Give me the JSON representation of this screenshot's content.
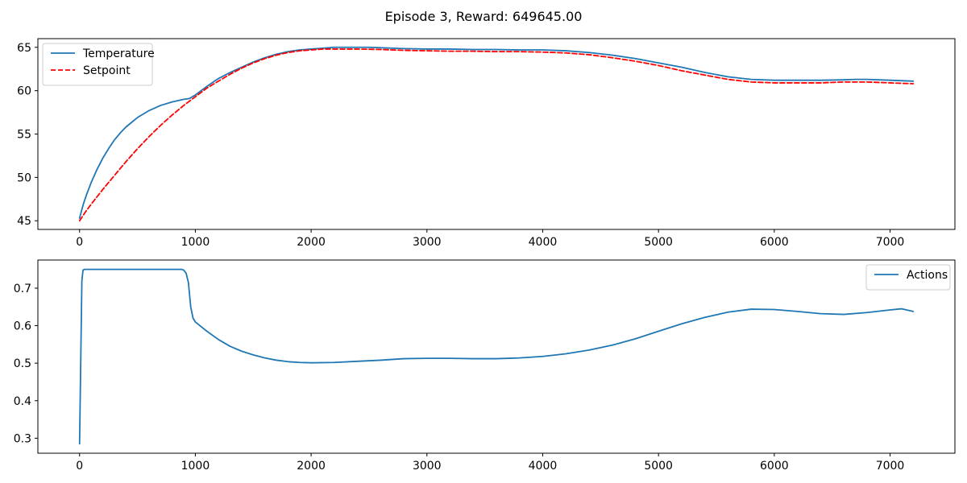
{
  "figure": {
    "title": "Episode 3, Reward: 649645.00"
  },
  "chart_data": [
    {
      "type": "line",
      "panel": "top",
      "title": "",
      "xlabel": "",
      "ylabel": "",
      "xlim": [
        -360,
        7560
      ],
      "ylim": [
        44,
        66
      ],
      "xticks": [
        0,
        1000,
        2000,
        3000,
        4000,
        5000,
        6000,
        7000
      ],
      "xtick_labels": [
        "0",
        "1000",
        "2000",
        "3000",
        "4000",
        "5000",
        "6000",
        "7000"
      ],
      "yticks": [
        45,
        50,
        55,
        60,
        65
      ],
      "ytick_labels": [
        "45",
        "50",
        "55",
        "60",
        "65"
      ],
      "grid": false,
      "legend_position": "top-left",
      "series": [
        {
          "name": "Temperature",
          "color": "#1f77b4",
          "style": "solid",
          "x": [
            0,
            30,
            60,
            100,
            150,
            200,
            250,
            300,
            350,
            400,
            500,
            600,
            700,
            800,
            900,
            950,
            1000,
            1100,
            1200,
            1300,
            1400,
            1500,
            1600,
            1700,
            1800,
            1900,
            2000,
            2100,
            2200,
            2300,
            2400,
            2500,
            2600,
            2800,
            3000,
            3200,
            3400,
            3600,
            3800,
            4000,
            4200,
            4400,
            4600,
            4800,
            5000,
            5200,
            5400,
            5600,
            5800,
            6000,
            6200,
            6400,
            6600,
            6700,
            6800,
            7000,
            7200
          ],
          "y": [
            45.3,
            46.8,
            48.0,
            49.4,
            50.9,
            52.2,
            53.3,
            54.3,
            55.1,
            55.8,
            56.9,
            57.7,
            58.3,
            58.7,
            59.0,
            59.1,
            59.5,
            60.5,
            61.4,
            62.1,
            62.7,
            63.3,
            63.8,
            64.2,
            64.5,
            64.7,
            64.8,
            64.9,
            65.0,
            65.0,
            65.0,
            65.0,
            64.95,
            64.85,
            64.8,
            64.8,
            64.75,
            64.75,
            64.7,
            64.7,
            64.6,
            64.4,
            64.1,
            63.7,
            63.2,
            62.7,
            62.1,
            61.6,
            61.3,
            61.2,
            61.2,
            61.2,
            61.25,
            61.3,
            61.3,
            61.2,
            61.1
          ]
        },
        {
          "name": "Setpoint",
          "color": "#ff0000",
          "style": "dashed",
          "x": [
            0,
            50,
            100,
            200,
            300,
            400,
            500,
            600,
            700,
            800,
            900,
            1000,
            1100,
            1200,
            1300,
            1400,
            1500,
            1600,
            1700,
            1800,
            1900,
            2000,
            2100,
            2200,
            2300,
            2400,
            2600,
            2800,
            3000,
            3200,
            3400,
            3600,
            3800,
            4000,
            4200,
            4400,
            4600,
            4800,
            5000,
            5200,
            5400,
            5600,
            5800,
            6000,
            6200,
            6400,
            6600,
            6700,
            6800,
            7000,
            7200
          ],
          "y": [
            45.0,
            46.0,
            46.9,
            48.6,
            50.2,
            51.8,
            53.3,
            54.7,
            56.0,
            57.2,
            58.3,
            59.3,
            60.3,
            61.1,
            61.9,
            62.6,
            63.2,
            63.7,
            64.1,
            64.4,
            64.6,
            64.7,
            64.8,
            64.8,
            64.8,
            64.8,
            64.75,
            64.65,
            64.6,
            64.55,
            64.55,
            64.5,
            64.5,
            64.45,
            64.35,
            64.15,
            63.8,
            63.4,
            62.9,
            62.3,
            61.8,
            61.3,
            61.0,
            60.9,
            60.9,
            60.9,
            61.0,
            61.0,
            61.0,
            60.9,
            60.8
          ]
        }
      ]
    },
    {
      "type": "line",
      "panel": "bottom",
      "title": "",
      "xlabel": "",
      "ylabel": "",
      "xlim": [
        -360,
        7560
      ],
      "ylim": [
        0.26,
        0.775
      ],
      "xticks": [
        0,
        1000,
        2000,
        3000,
        4000,
        5000,
        6000,
        7000
      ],
      "xtick_labels": [
        "0",
        "1000",
        "2000",
        "3000",
        "4000",
        "5000",
        "6000",
        "7000"
      ],
      "yticks": [
        0.3,
        0.4,
        0.5,
        0.6,
        0.7
      ],
      "ytick_labels": [
        "0.3",
        "0.4",
        "0.5",
        "0.6",
        "0.7"
      ],
      "grid": false,
      "legend_position": "top-right",
      "series": [
        {
          "name": "Actions",
          "color": "#1f77b4",
          "style": "solid",
          "x": [
            0,
            10,
            20,
            30,
            40,
            60,
            100,
            200,
            400,
            600,
            800,
            880,
            900,
            920,
            940,
            960,
            980,
            1000,
            1100,
            1200,
            1300,
            1400,
            1500,
            1600,
            1700,
            1800,
            1900,
            2000,
            2200,
            2400,
            2600,
            2800,
            3000,
            3200,
            3400,
            3600,
            3800,
            4000,
            4200,
            4400,
            4600,
            4800,
            5000,
            5200,
            5400,
            5600,
            5800,
            6000,
            6200,
            6400,
            6600,
            6800,
            7000,
            7100,
            7200
          ],
          "y": [
            0.285,
            0.5,
            0.72,
            0.748,
            0.75,
            0.75,
            0.75,
            0.75,
            0.75,
            0.75,
            0.75,
            0.75,
            0.748,
            0.74,
            0.715,
            0.65,
            0.62,
            0.61,
            0.585,
            0.563,
            0.545,
            0.532,
            0.522,
            0.514,
            0.508,
            0.504,
            0.502,
            0.501,
            0.502,
            0.505,
            0.508,
            0.512,
            0.513,
            0.513,
            0.512,
            0.512,
            0.514,
            0.518,
            0.525,
            0.535,
            0.548,
            0.565,
            0.585,
            0.605,
            0.622,
            0.636,
            0.644,
            0.643,
            0.638,
            0.632,
            0.63,
            0.635,
            0.642,
            0.645,
            0.638
          ]
        }
      ]
    }
  ]
}
